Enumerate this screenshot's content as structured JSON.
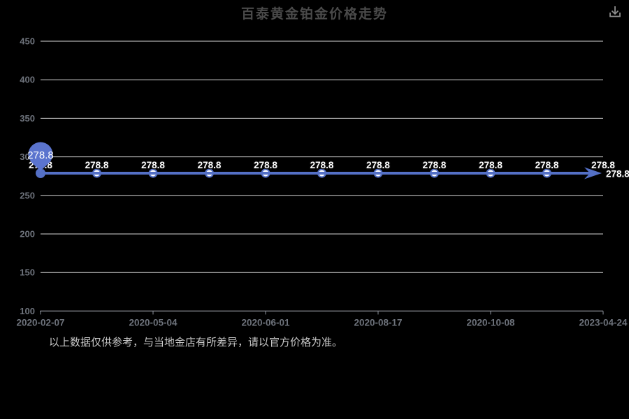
{
  "title": "百泰黄金铂金价格走势",
  "toolbar": {
    "download_icon": "download"
  },
  "footer": "以上数据仅供参考，与当地金店有所差异，请以官方价格为准。",
  "chart_data": {
    "type": "line",
    "title": "百泰黄金铂金价格走势",
    "values": [
      278.8,
      278.8,
      278.8,
      278.8,
      278.8,
      278.8,
      278.8,
      278.8,
      278.8,
      278.8,
      278.8
    ],
    "point_labels": [
      "278.8",
      "278.8",
      "278.8",
      "278.8",
      "278.8",
      "278.8",
      "278.8",
      "278.8",
      "278.8",
      "278.8",
      "278.8"
    ],
    "x_axis_labels": [
      {
        "i": 0,
        "text": "2020-02-07"
      },
      {
        "i": 2,
        "text": "2020-05-04"
      },
      {
        "i": 4,
        "text": "2020-06-01"
      },
      {
        "i": 6,
        "text": "2020-08-17"
      },
      {
        "i": 8,
        "text": "2020-10-08"
      },
      {
        "i": 10,
        "text": "2023-04-24"
      }
    ],
    "y_ticks": [
      100,
      150,
      200,
      250,
      300,
      350,
      400,
      450
    ],
    "ylim": [
      100,
      450
    ],
    "grid": true,
    "legend": false,
    "tooltip_label": "278.8",
    "end_value_label": "278.8",
    "colors": {
      "line": "#5470c6",
      "balloon": "#5b74ce",
      "marker_fill": "#ffffff",
      "grid": "#d6d6d6",
      "axis": "#8d929b",
      "axis_label": "#6e737c",
      "point_label": "#ffffff",
      "label_outline": "#0a0a0a"
    }
  }
}
